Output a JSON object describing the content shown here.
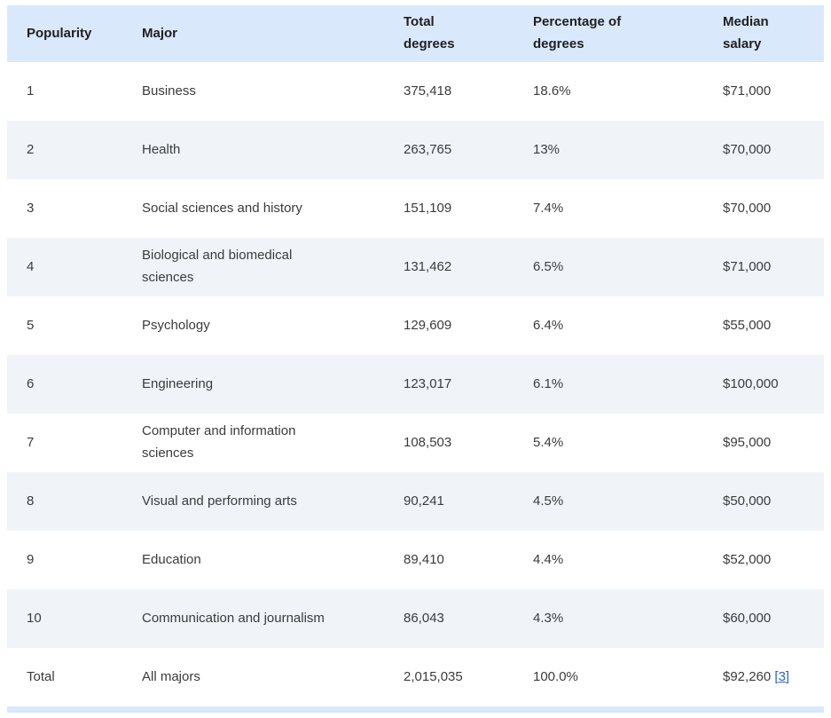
{
  "colors": {
    "header_background": "#d9e8fb",
    "alternate_row_background": "#f0f4f9",
    "row_background": "#ffffff",
    "header_text": "#1f1f1f",
    "body_text": "#3b3b3b",
    "link_blue": "#2a64c5"
  },
  "footnote": {
    "ref": "3",
    "brackets": [
      "[",
      "]"
    ]
  },
  "chart_data": {
    "type": "table",
    "title": "",
    "columns": [
      "Popularity",
      "Major",
      "Total degrees",
      "Percentage of degrees",
      "Median salary"
    ],
    "column_keys": [
      "popularity",
      "major",
      "total-degrees",
      "percentage-of-degrees",
      "median-salary"
    ],
    "rows": [
      [
        "1",
        "Business",
        "375,418",
        "18.6%",
        "$71,000"
      ],
      [
        "2",
        "Health",
        "263,765",
        "13%",
        "$70,000"
      ],
      [
        "3",
        "Social sciences and history",
        "151,109",
        "7.4%",
        "$70,000"
      ],
      [
        "4",
        "Biological and biomedical sciences",
        "131,462",
        "6.5%",
        "$71,000"
      ],
      [
        "5",
        "Psychology",
        "129,609",
        "6.4%",
        "$55,000"
      ],
      [
        "6",
        "Engineering",
        "123,017",
        "6.1%",
        "$100,000"
      ],
      [
        "7",
        "Computer and information sciences",
        "108,503",
        "5.4%",
        "$95,000"
      ],
      [
        "8",
        "Visual and performing arts",
        "90,241",
        "4.5%",
        "$50,000"
      ],
      [
        "9",
        "Education",
        "89,410",
        "4.4%",
        "$52,000"
      ],
      [
        "10",
        "Communication and journalism",
        "86,043",
        "4.3%",
        "$60,000"
      ],
      [
        "Total",
        "All majors",
        "2,015,035",
        "100.0%",
        "$92,260"
      ]
    ],
    "total_row_label": "Total",
    "total_row_footnote": "3"
  }
}
